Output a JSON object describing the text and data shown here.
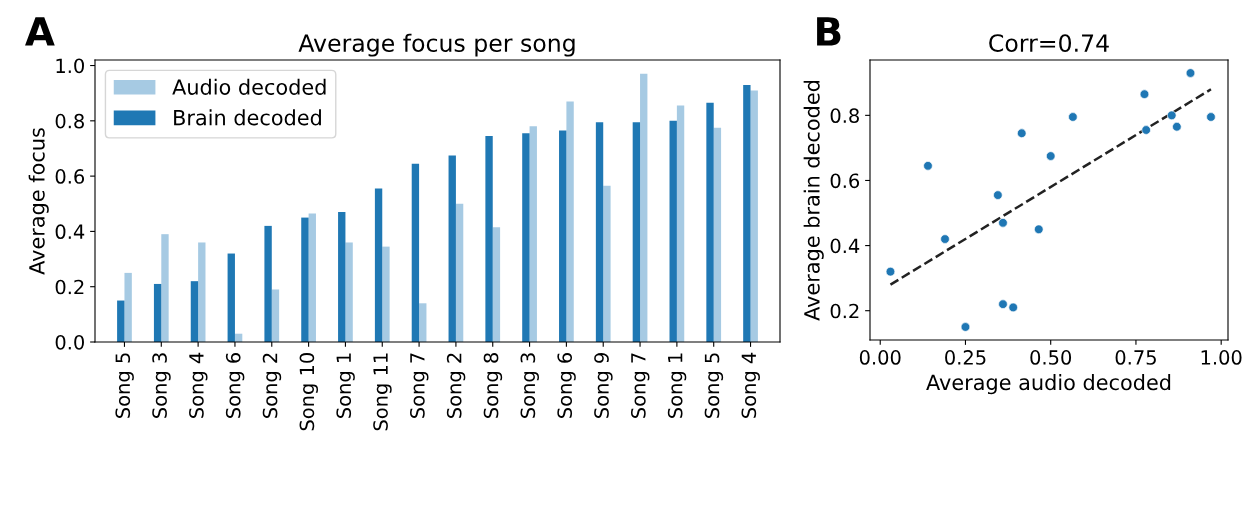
{
  "chart_data": [
    {
      "type": "bar",
      "title": "Average focus per song",
      "ylabel": "Average focus",
      "annotations": [
        "A"
      ],
      "categories": [
        "Song 5",
        "Song 3",
        "Song 4",
        "Song 6",
        "Song 2",
        "Song 10",
        "Song 1",
        "Song 11",
        "Song 7",
        "Song 2",
        "Song 8",
        "Song 3",
        "Song 6",
        "Song 9",
        "Song 7",
        "Song 1",
        "Song 5",
        "Song 4"
      ],
      "series": [
        {
          "name": "Audio decoded",
          "color": "#a6cae3",
          "values": [
            0.25,
            0.39,
            0.36,
            0.03,
            0.19,
            0.465,
            0.36,
            0.345,
            0.14,
            0.5,
            0.415,
            0.78,
            0.87,
            0.565,
            0.97,
            0.855,
            0.775,
            0.91
          ]
        },
        {
          "name": "Brain decoded",
          "color": "#1f78b4",
          "values": [
            0.15,
            0.21,
            0.22,
            0.32,
            0.42,
            0.45,
            0.47,
            0.555,
            0.645,
            0.675,
            0.745,
            0.755,
            0.765,
            0.795,
            0.795,
            0.8,
            0.865,
            0.93
          ]
        }
      ],
      "ylim": [
        0,
        1.02
      ],
      "yticks": [
        {
          "value": 0,
          "label": "0.0"
        },
        0.2,
        0.4,
        0.6,
        0.8,
        {
          "value": 1,
          "label": "1.0"
        }
      ],
      "legend": "top left",
      "grid": false
    },
    {
      "type": "scatter",
      "title": "Corr=0.74",
      "xlabel": "Average audio decoded",
      "ylabel": "Average brain decoded",
      "annotations": [
        "B"
      ],
      "series": [
        {
          "color": "#1f77b4",
          "marker": "circle",
          "x": [
            0.25,
            0.39,
            0.36,
            0.03,
            0.19,
            0.465,
            0.36,
            0.345,
            0.14,
            0.5,
            0.415,
            0.78,
            0.87,
            0.565,
            0.97,
            0.855,
            0.775,
            0.91
          ],
          "values": [
            0.15,
            0.21,
            0.22,
            0.32,
            0.42,
            0.45,
            0.47,
            0.555,
            0.645,
            0.675,
            0.745,
            0.755,
            0.765,
            0.795,
            0.795,
            0.8,
            0.865,
            0.93
          ]
        },
        {
          "type": "line",
          "line_style": "dashed",
          "color": "#222222",
          "x": [
            0.03,
            0.97
          ],
          "values": [
            0.28,
            0.88
          ]
        }
      ],
      "xlim": [
        -0.03,
        1.02
      ],
      "xticks": [
        {
          "value": 0,
          "label": "0.00"
        },
        0.25,
        {
          "value": 0.5,
          "label": "0.50"
        },
        0.75,
        {
          "value": 1,
          "label": "1.00"
        }
      ],
      "ylim": [
        0.11,
        0.97
      ],
      "yticks": [
        0.2,
        0.4,
        0.6,
        0.8
      ],
      "grid": false
    }
  ]
}
